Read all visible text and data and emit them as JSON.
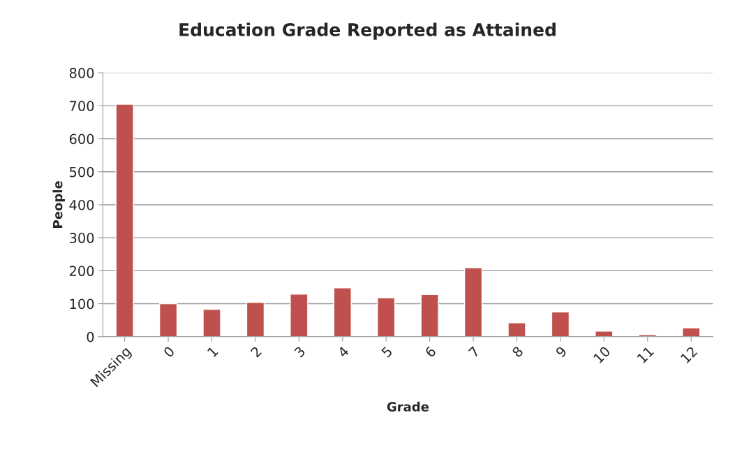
{
  "chart_data": {
    "type": "bar",
    "title": "Education Grade Reported as Attained",
    "xlabel": "Grade",
    "ylabel": "People",
    "categories": [
      "Missing",
      "0",
      "1",
      "2",
      "3",
      "4",
      "5",
      "6",
      "7",
      "8",
      "9",
      "10",
      "11",
      "12"
    ],
    "values": [
      705,
      100,
      83,
      104,
      129,
      148,
      118,
      128,
      209,
      42,
      75,
      17,
      6,
      27
    ],
    "color": "#c0504d",
    "ylim": [
      0,
      800
    ],
    "yticks": [
      0,
      100,
      200,
      300,
      400,
      500,
      600,
      700,
      800
    ],
    "grid": "y"
  }
}
